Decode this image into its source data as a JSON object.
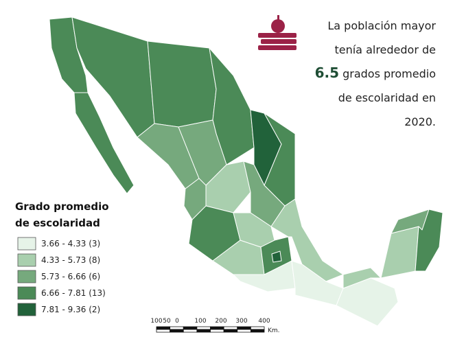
{
  "headline": {
    "line1": "La población mayor",
    "line2": "tenía alrededor de",
    "highlight": "6.5",
    "line3_rest": "grados promedio",
    "line4": "de escolaridad en",
    "line5": "2020."
  },
  "legend": {
    "title1": "Grado promedio",
    "title2": "de escolaridad",
    "items": [
      {
        "label": "3.66 - 4.33 (3)",
        "color": "#e6f3e8"
      },
      {
        "label": "4.33 - 5.73 (8)",
        "color": "#a9cfae"
      },
      {
        "label": "5.73 - 6.66 (6)",
        "color": "#76a97d"
      },
      {
        "label": "6.66 - 7.81 (13)",
        "color": "#4b8a57"
      },
      {
        "label": "7.81 - 9.36 (2)",
        "color": "#21623a"
      }
    ]
  },
  "scale": {
    "ticks": [
      "100",
      "50",
      "0",
      "100",
      "200",
      "300",
      "400"
    ],
    "unit": "Km."
  }
}
